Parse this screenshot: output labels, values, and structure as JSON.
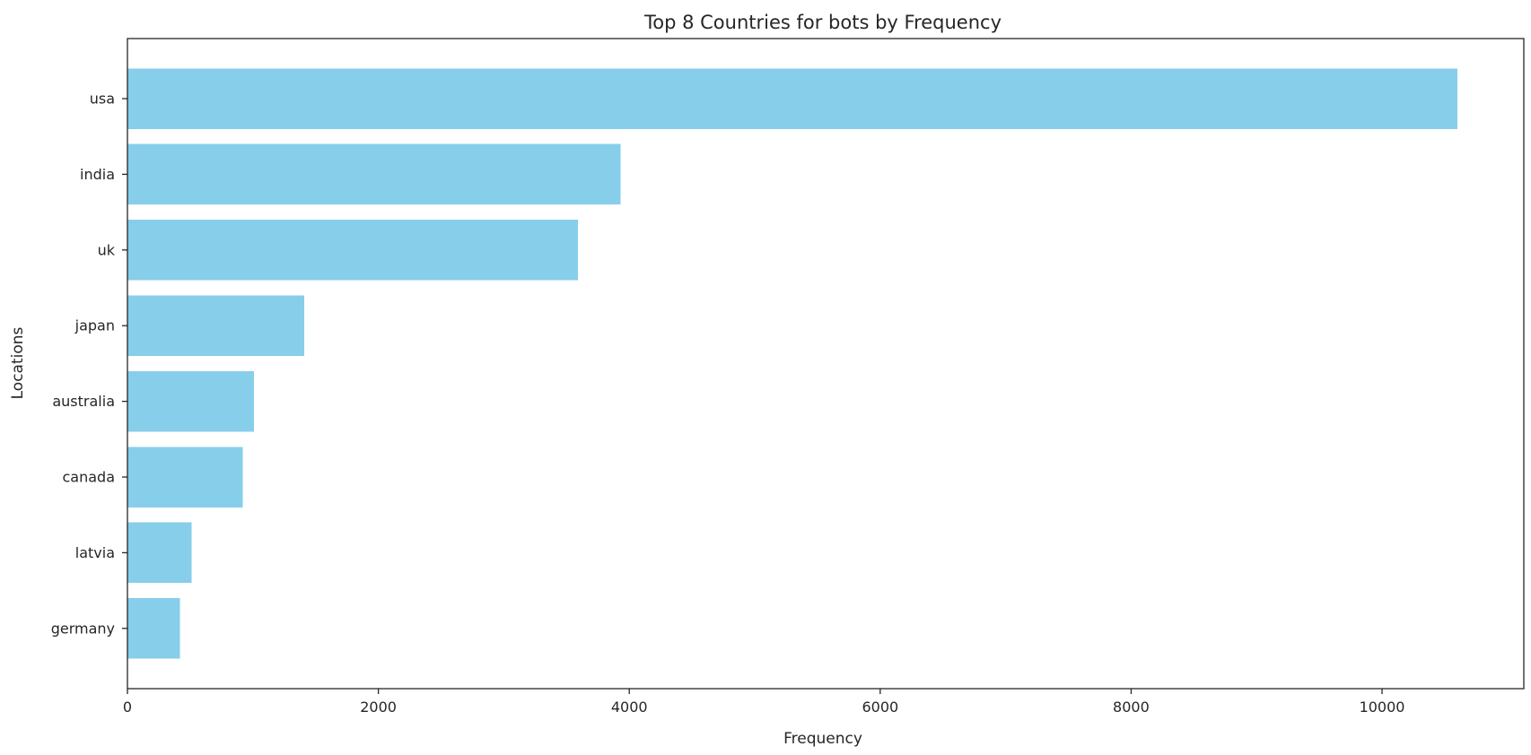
{
  "chart_data": {
    "type": "bar",
    "orientation": "horizontal",
    "title": "Top 8 Countries for bots by Frequency",
    "xlabel": "Frequency",
    "ylabel": "Locations",
    "categories": [
      "usa",
      "india",
      "uk",
      "japan",
      "australia",
      "canada",
      "latvia",
      "germany"
    ],
    "values": [
      10600,
      3930,
      3590,
      1410,
      1010,
      920,
      510,
      420
    ],
    "xlim": [
      0,
      11130
    ],
    "xticks": [
      0,
      2000,
      4000,
      6000,
      8000,
      10000
    ],
    "xtick_labels": [
      "0",
      "2000",
      "4000",
      "6000",
      "8000",
      "10000"
    ],
    "bar_color": "#87ceeb",
    "grid": false,
    "legend": "none"
  }
}
